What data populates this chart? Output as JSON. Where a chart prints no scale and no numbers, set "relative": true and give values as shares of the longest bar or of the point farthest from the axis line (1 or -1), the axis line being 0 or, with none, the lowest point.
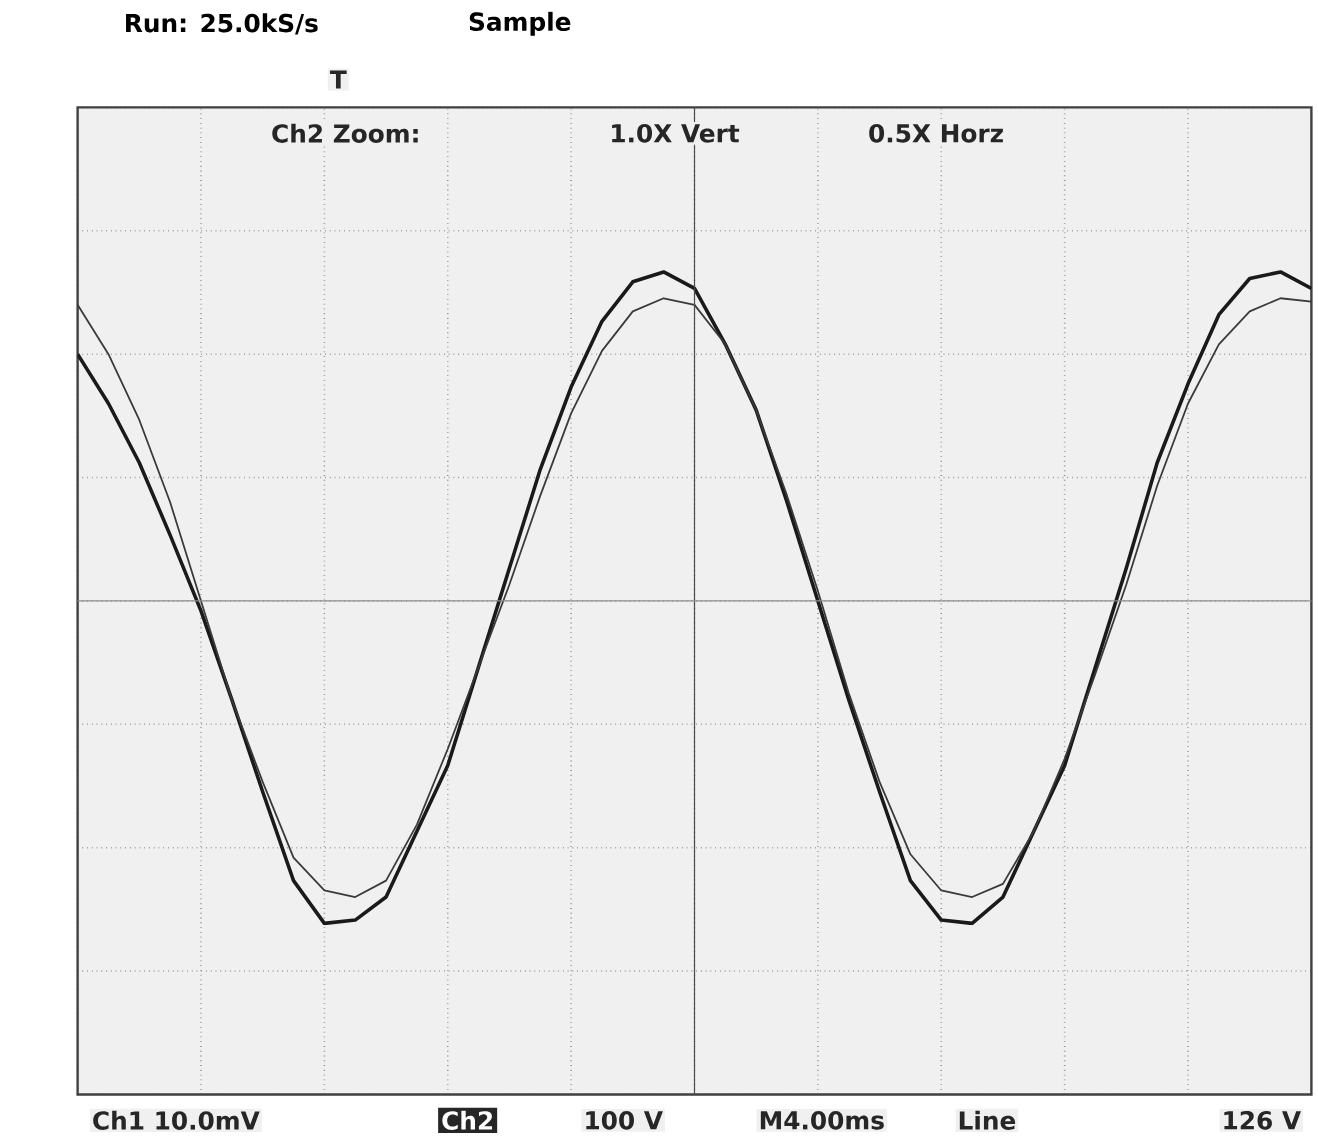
{
  "chart_data": {
    "type": "line",
    "title": "Run: 25.0kS/s",
    "subtitle": "Sample",
    "relative": true,
    "grid": true,
    "tick_labels": false,
    "marker": "none",
    "line_style": "solid",
    "categories": [
      null,
      null,
      null,
      null,
      null,
      null,
      null,
      null,
      null,
      null,
      null,
      null,
      null,
      null,
      null,
      null,
      null,
      null,
      null,
      null,
      null,
      null,
      null,
      null,
      null,
      null,
      null,
      null,
      null,
      null,
      null,
      null,
      null,
      null,
      null,
      null,
      null,
      null,
      null,
      null,
      null
    ],
    "series": [
      {
        "color": "#1a1a1a",
        "values": [
          0.75,
          0.6,
          0.42,
          0.2,
          -0.03,
          -0.3,
          -0.58,
          -0.85,
          -0.98,
          -0.97,
          -0.9,
          -0.7,
          -0.5,
          -0.2,
          0.1,
          0.4,
          0.65,
          0.85,
          0.97,
          1.0,
          0.95,
          0.78,
          0.58,
          0.3,
          0.0,
          -0.3,
          -0.58,
          -0.85,
          -0.97,
          -0.98,
          -0.9,
          -0.7,
          -0.5,
          -0.2,
          0.1,
          0.42,
          0.66,
          0.87,
          0.98,
          1.0,
          0.95
        ]
      },
      {
        "color": "#3a3a3a",
        "values": [
          0.9,
          0.75,
          0.55,
          0.3,
          0.0,
          -0.3,
          -0.55,
          -0.78,
          -0.88,
          -0.9,
          -0.85,
          -0.68,
          -0.45,
          -0.2,
          0.05,
          0.32,
          0.57,
          0.76,
          0.88,
          0.92,
          0.9,
          0.78,
          0.58,
          0.32,
          0.03,
          -0.28,
          -0.55,
          -0.77,
          -0.88,
          -0.9,
          -0.86,
          -0.7,
          -0.48,
          -0.22,
          0.05,
          0.35,
          0.6,
          0.78,
          0.88,
          0.92,
          0.91
        ]
      }
    ],
    "annotations": [
      "T",
      "Ch2 Zoom:",
      "1.0X Vert",
      "0.5X Horz",
      "Ch1  10.0mV",
      "Ch2",
      "100 V",
      "M4.00ms",
      "Line",
      "126 V"
    ]
  }
}
